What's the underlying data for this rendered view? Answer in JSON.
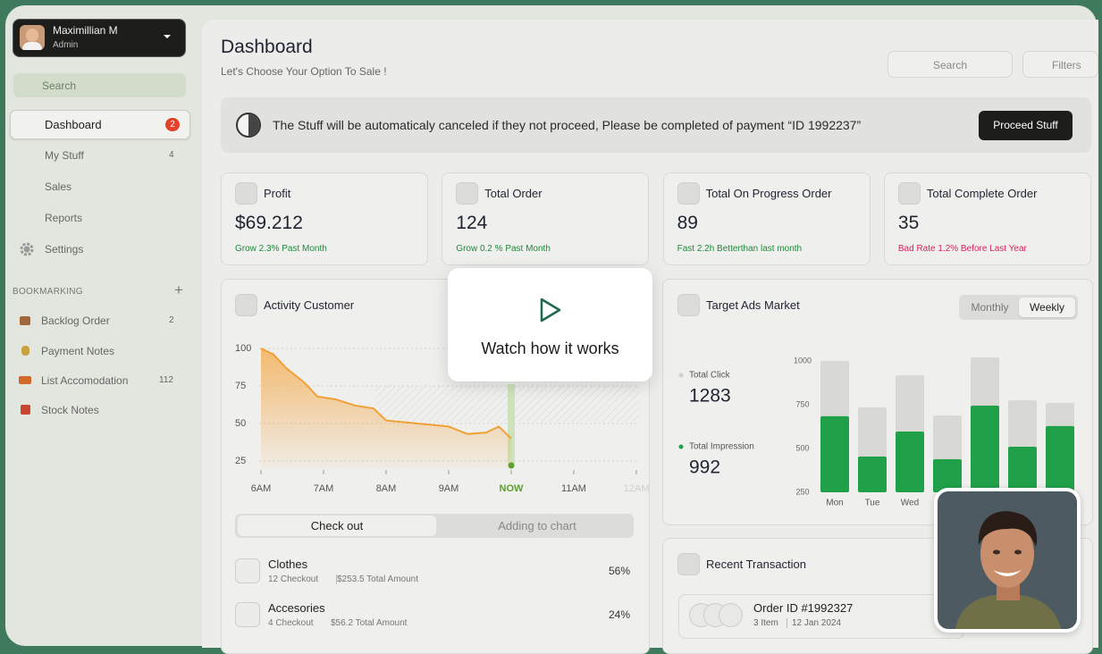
{
  "sidebar": {
    "user": {
      "name": "Maximillian M",
      "role": "Admin"
    },
    "search": "Search",
    "nav": [
      {
        "label": "Dashboard",
        "badge": "2"
      },
      {
        "label": "My Stuff",
        "badge": "4"
      },
      {
        "label": "Sales"
      },
      {
        "label": "Reports"
      },
      {
        "label": "Settings"
      }
    ],
    "bookmark_title": "BOOKMARKING",
    "bookmarks": [
      {
        "label": "Backlog Order",
        "count": "2"
      },
      {
        "label": "Payment Notes"
      },
      {
        "label": "List Accomodation",
        "count": "112"
      },
      {
        "label": "Stock Notes"
      }
    ]
  },
  "header": {
    "title": "Dashboard",
    "subtitle": "Let's Choose Your Option To Sale !",
    "search": "Search",
    "filters": "Filters"
  },
  "notice": {
    "text": "The Stuff will be automaticaly canceled if they not proceed, Please be completed of payment “ID 1992237”",
    "button": "Proceed Stuff"
  },
  "stats": [
    {
      "label": "Profit",
      "value": "$69.212",
      "note": "Grow 2.3% Past Month",
      "note_color": "#1e8a3a"
    },
    {
      "label": "Total Order",
      "value": "124",
      "note": "Grow 0.2 % Past Month",
      "note_color": "#1e8a3a"
    },
    {
      "label": "Total On Progress Order",
      "value": "89",
      "note": "Fast 2.2h Betterthan last month",
      "note_color": "#1e8a3a"
    },
    {
      "label": "Total Complete Order",
      "value": "35",
      "note": "Bad Rate 1.2% Before Last Year",
      "note_color": "#d6245a"
    }
  ],
  "activity": {
    "title": "Activity Customer",
    "chart": {
      "type": "line",
      "x": [
        6,
        6.2,
        6.4,
        6.7,
        6.9,
        7.2,
        7.5,
        7.8,
        8.0,
        8.5,
        9.0,
        9.3,
        9.6,
        9.8,
        10.0
      ],
      "values": [
        100,
        96,
        87,
        77,
        68,
        66,
        62,
        60,
        52,
        50,
        48,
        43,
        44,
        48,
        40
      ],
      "color": "#f0a035",
      "xlim": [
        6,
        12
      ],
      "xticks": [
        {
          "value": 6,
          "label": "6AM"
        },
        {
          "value": 7,
          "label": "7AM"
        },
        {
          "value": 8,
          "label": "8AM"
        },
        {
          "value": 9,
          "label": "9AM"
        },
        {
          "value": 10,
          "label": "NOW"
        },
        {
          "value": 11,
          "label": "11AM"
        },
        {
          "value": 12,
          "label": "12AM"
        }
      ],
      "highlight_tick": 4,
      "ylim": [
        20,
        105
      ],
      "yticks": [
        25,
        50,
        75,
        100
      ],
      "grid": true
    },
    "tabs": [
      "Check out",
      "Adding to chart"
    ],
    "items": [
      {
        "name": "Clothes",
        "checkout": "12 Checkout",
        "amount": "$253.5 Total Amount",
        "share": "56%"
      },
      {
        "name": "Accesories",
        "checkout": "4 Checkout",
        "amount": "$56.2 Total Amount",
        "share": "24%"
      }
    ]
  },
  "video": {
    "label": "Watch how it works"
  },
  "ads": {
    "title": "Target Ads Market",
    "toggle": [
      "Monthly",
      "Weekly"
    ],
    "active_toggle": 1,
    "totals": [
      1283,
      992
    ],
    "chart": {
      "type": "bar",
      "categories": [
        "Mon",
        "Tue",
        "Wed",
        null,
        null,
        null,
        null
      ],
      "series": [
        {
          "name": "Total Click",
          "color": "#d8d8d4",
          "values": [
            1000,
            735,
            918,
            689,
            1020,
            775,
            760
          ]
        },
        {
          "name": "Total Impression",
          "color": "#21a04a",
          "values": [
            684,
            454,
            597,
            439,
            745,
            510,
            628
          ]
        }
      ],
      "ylim": [
        250,
        1050
      ],
      "yticks": [
        250,
        500,
        750,
        1000
      ]
    }
  },
  "recent": {
    "title": "Recent Transaction",
    "order": {
      "id": "Order ID #1992327",
      "items": "3 Item",
      "date": "12 Jan 2024"
    }
  }
}
